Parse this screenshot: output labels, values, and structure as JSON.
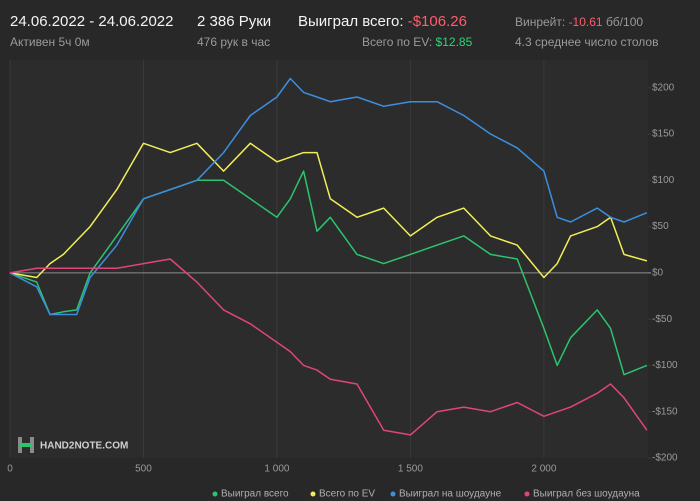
{
  "header": {
    "dates": "24.06.2022 - 24.06.2022",
    "active": "Активен 5ч 0м",
    "hands": "2 386 Руки",
    "hands_per_hour": "476 рук в час",
    "won_label": "Выиграл всего:",
    "won_value": "-$106.26",
    "ev_label": "Всего по EV:",
    "ev_value": "$12.85",
    "winrate_label": "Винрейт:",
    "winrate_value": "-10.61",
    "winrate_unit": "бб/100",
    "tables": "4.3 среднее число столов"
  },
  "watermark": "HAND2NOTE.COM",
  "chart_data": {
    "type": "line",
    "x": [
      0,
      100,
      150,
      200,
      250,
      300,
      400,
      500,
      600,
      700,
      800,
      900,
      1000,
      1050,
      1100,
      1150,
      1200,
      1300,
      1400,
      1500,
      1600,
      1700,
      1800,
      1900,
      2000,
      2050,
      2100,
      2200,
      2250,
      2300,
      2386
    ],
    "series": [
      {
        "name": "Выиграл всего",
        "color": "#2bc46f",
        "values": [
          0,
          -10,
          -45,
          -42,
          -40,
          0,
          40,
          80,
          90,
          100,
          100,
          80,
          60,
          80,
          110,
          45,
          60,
          20,
          10,
          20,
          30,
          40,
          20,
          15,
          -60,
          -100,
          -70,
          -40,
          -60,
          -110,
          -100
        ]
      },
      {
        "name": "Всего по EV",
        "color": "#f2ee58",
        "values": [
          0,
          -5,
          10,
          20,
          35,
          50,
          90,
          140,
          130,
          140,
          110,
          140,
          120,
          125,
          130,
          130,
          80,
          60,
          70,
          40,
          60,
          70,
          40,
          30,
          -5,
          10,
          40,
          50,
          60,
          20,
          13
        ]
      },
      {
        "name": "Выиграл на шоудауне",
        "color": "#3d8ee0",
        "values": [
          0,
          -15,
          -45,
          -45,
          -45,
          -5,
          30,
          80,
          90,
          100,
          130,
          170,
          190,
          210,
          195,
          190,
          185,
          190,
          180,
          185,
          185,
          170,
          150,
          135,
          110,
          60,
          55,
          70,
          60,
          55,
          65
        ]
      },
      {
        "name": "Выиграл без шоудауна",
        "color": "#e0447c",
        "values": [
          0,
          5,
          5,
          5,
          5,
          5,
          5,
          10,
          15,
          -10,
          -40,
          -55,
          -75,
          -85,
          -100,
          -105,
          -115,
          -120,
          -170,
          -175,
          -150,
          -145,
          -150,
          -140,
          -155,
          -150,
          -145,
          -130,
          -120,
          -135,
          -170
        ]
      }
    ],
    "xlim": [
      0,
      2390
    ],
    "xticks": [
      0,
      500,
      {
        "value": 1000,
        "label": "1 000"
      },
      {
        "value": 1500,
        "label": "1 500"
      },
      {
        "value": 2000,
        "label": "2 000"
      }
    ],
    "ylim": [
      -200,
      230
    ],
    "yticks": [
      {
        "value": 200,
        "label": "$200"
      },
      {
        "value": 150,
        "label": "$150"
      },
      {
        "value": 100,
        "label": "$100"
      },
      {
        "value": 50,
        "label": "$50"
      },
      {
        "value": 0,
        "label": "$0"
      },
      {
        "value": -50,
        "label": "-$50"
      },
      {
        "value": -100,
        "label": "-$100"
      },
      {
        "value": -150,
        "label": "-$150"
      },
      {
        "value": -200,
        "label": "-$200"
      }
    ],
    "legend": "bottom"
  }
}
